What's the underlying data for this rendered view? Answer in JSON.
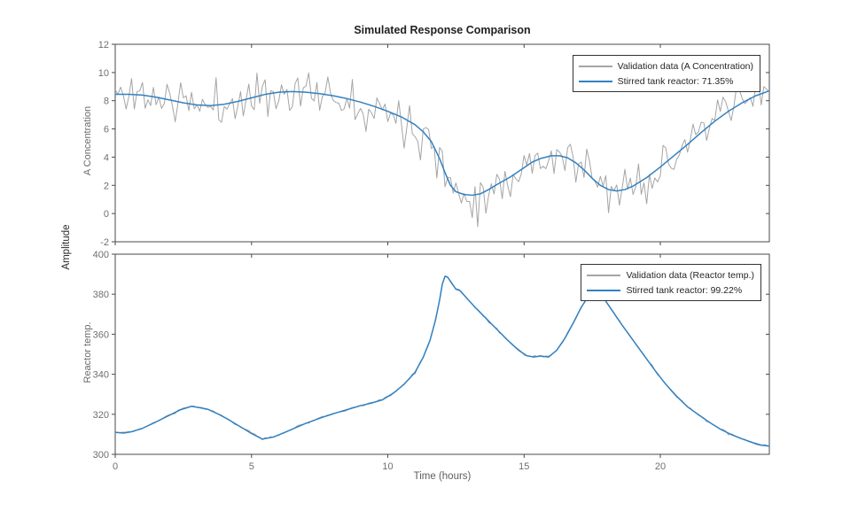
{
  "figure": {
    "title": "Simulated Response Comparison",
    "shared_ylabel": "Amplitude",
    "xlabel": "Time (hours)",
    "background": "#ffffff"
  },
  "style": {
    "model_color": "#0072BD",
    "model_render_color": "#3181c2",
    "validation_color": "#a5a5a5",
    "spine_color": "#4a4a4a",
    "tick_color": "#4a4a4a",
    "tick_label_color": "#6f6f6f",
    "axis_label_color": "#6a6a6a",
    "title_color": "#212121",
    "legend_border_color": "#333333",
    "legend_text_color": "#262626"
  },
  "chart_data": [
    {
      "type": "line",
      "name": "a-concentration-subplot",
      "ylabel": "A Concentration",
      "xlim": [
        0,
        24
      ],
      "ylim": [
        -2,
        12
      ],
      "xticks": [
        0,
        5,
        10,
        15,
        20
      ],
      "yticks": [
        -2,
        0,
        2,
        4,
        6,
        8,
        10,
        12
      ],
      "x_tick_labels_visible": false,
      "fit_percent": 71.35,
      "legend": [
        {
          "label": "Validation data (A Concentration)",
          "series_role": "validation"
        },
        {
          "label": "Stirred tank reactor: 71.35%",
          "series_role": "model"
        }
      ],
      "series": [
        {
          "name": "Validation data (A Concentration)",
          "role": "validation",
          "derived_from": "model",
          "sample_step": 0.1,
          "noise_amp": 1.35,
          "seed": 11
        },
        {
          "name": "Stirred tank reactor: 71.35%",
          "role": "model",
          "x": [
            0,
            0.5,
            1,
            1.5,
            2,
            2.5,
            3,
            3.5,
            4,
            4.5,
            5,
            5.5,
            6,
            6.5,
            7,
            7.5,
            8,
            8.5,
            9,
            9.5,
            10,
            10.5,
            11,
            11.3,
            11.6,
            11.9,
            12.1,
            12.3,
            12.5,
            12.8,
            13.1,
            13.4,
            13.7,
            14,
            14.5,
            15,
            15.3,
            15.6,
            16,
            16.3,
            16.6,
            16.9,
            17.2,
            17.5,
            17.8,
            18.1,
            18.4,
            18.7,
            19,
            19.5,
            20,
            20.5,
            21,
            21.5,
            22,
            22.5,
            23,
            23.5,
            24
          ],
          "y": [
            8.45,
            8.45,
            8.4,
            8.25,
            8.05,
            7.85,
            7.7,
            7.65,
            7.75,
            7.95,
            8.2,
            8.45,
            8.6,
            8.65,
            8.6,
            8.5,
            8.35,
            8.15,
            7.9,
            7.6,
            7.25,
            6.85,
            6.3,
            5.8,
            5.1,
            3.9,
            2.9,
            2.0,
            1.55,
            1.35,
            1.3,
            1.4,
            1.7,
            2.05,
            2.6,
            3.25,
            3.65,
            3.9,
            4.1,
            4.1,
            3.95,
            3.6,
            3.1,
            2.5,
            2.0,
            1.7,
            1.6,
            1.7,
            1.95,
            2.55,
            3.3,
            4.1,
            4.9,
            5.75,
            6.55,
            7.25,
            7.85,
            8.35,
            8.7
          ]
        }
      ]
    },
    {
      "type": "line",
      "name": "reactor-temp-subplot",
      "ylabel": "Reactor temp.",
      "xlim": [
        0,
        24
      ],
      "ylim": [
        300,
        400
      ],
      "xticks": [
        0,
        5,
        10,
        15,
        20
      ],
      "yticks": [
        300,
        320,
        340,
        360,
        380,
        400
      ],
      "x_tick_labels_visible": true,
      "fit_percent": 99.22,
      "legend": [
        {
          "label": "Validation data (Reactor temp.)",
          "series_role": "validation"
        },
        {
          "label": "Stirred tank reactor: 99.22%",
          "series_role": "model"
        }
      ],
      "series": [
        {
          "name": "Validation data (Reactor temp.)",
          "role": "validation",
          "derived_from": "model",
          "sample_step": 0.1,
          "noise_amp": 0.5,
          "seed": 4
        },
        {
          "name": "Stirred tank reactor: 99.22%",
          "role": "model",
          "x": [
            0,
            0.3,
            0.6,
            1,
            1.5,
            2,
            2.4,
            2.8,
            3.1,
            3.4,
            3.8,
            4.2,
            4.6,
            5,
            5.4,
            5.8,
            6.2,
            6.6,
            7,
            7.5,
            8,
            8.5,
            9,
            9.4,
            9.8,
            10.2,
            10.6,
            11,
            11.3,
            11.55,
            11.75,
            11.9,
            12.0,
            12.1,
            12.2,
            12.35,
            12.5,
            12.65,
            12.9,
            13.2,
            13.6,
            14,
            14.4,
            14.8,
            15.1,
            15.35,
            15.6,
            15.9,
            16.2,
            16.5,
            16.8,
            17.1,
            17.4,
            17.65,
            17.9,
            18.2,
            18.6,
            19,
            19.4,
            19.8,
            20.2,
            20.6,
            21,
            21.4,
            21.8,
            22.2,
            22.6,
            23,
            23.4,
            23.7,
            24
          ],
          "y": [
            311,
            310.6,
            311.3,
            313,
            316.2,
            319.6,
            322.3,
            324,
            323.3,
            322.5,
            320,
            317,
            313.7,
            310.4,
            307.6,
            308.6,
            310.8,
            313.2,
            315.5,
            318,
            320.3,
            322.3,
            324.3,
            325.6,
            327.2,
            330.5,
            335,
            341,
            348.5,
            357,
            367,
            377,
            385,
            389,
            388.5,
            385.5,
            382.5,
            381.8,
            378,
            373.5,
            368,
            362.5,
            357,
            352,
            349.3,
            348.6,
            349.1,
            348.6,
            352,
            358,
            365.5,
            373.5,
            379.8,
            381.4,
            378.5,
            372.5,
            364.5,
            357,
            349.5,
            342,
            335,
            329,
            323.7,
            319.8,
            316,
            312.6,
            309.9,
            307.7,
            305.8,
            304.6,
            304.1
          ]
        }
      ]
    }
  ]
}
